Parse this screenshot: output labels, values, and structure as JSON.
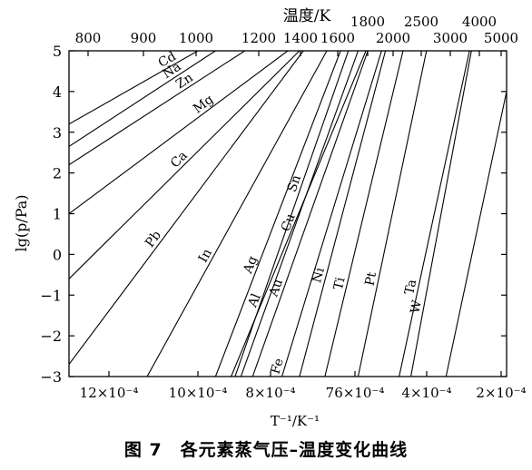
{
  "chart_data": {
    "type": "line",
    "top_axis_title": "温度/K",
    "top_ticks_row1": [
      800,
      900,
      1000,
      1200,
      1400,
      1600,
      2000,
      3000,
      5000
    ],
    "top_ticks_row2": [
      1800,
      2500,
      4000
    ],
    "x_tick_labels": [
      "12×10⁻⁴",
      "10×10⁻⁴",
      "8×10⁻⁴",
      "76×10⁻⁴",
      "4×10⁻⁴",
      "2×10⁻⁴"
    ],
    "xlabel": "T⁻¹/K⁻¹",
    "ylabel": "lg(p/Pa)",
    "y_ticks": [
      5,
      4,
      3,
      2,
      1,
      0,
      -1,
      -2,
      -3
    ],
    "xlim": [
      0.00013,
      0.00125
    ],
    "ylim": [
      -3,
      5
    ],
    "series": [
      {
        "name": "Cd",
        "points": [
          [
            0.00125,
            3.2
          ],
          [
            0.00092,
            5.0
          ]
        ]
      },
      {
        "name": "Na",
        "points": [
          [
            0.00125,
            2.65
          ],
          [
            0.000875,
            5.0
          ]
        ]
      },
      {
        "name": "Zn",
        "points": [
          [
            0.00125,
            2.2
          ],
          [
            0.0008,
            5.0
          ]
        ]
      },
      {
        "name": "Mg",
        "points": [
          [
            0.00125,
            1.0
          ],
          [
            0.00069,
            5.0
          ]
        ]
      },
      {
        "name": "Ca",
        "points": [
          [
            0.00125,
            -0.6
          ],
          [
            0.00066,
            5.0
          ]
        ]
      },
      {
        "name": "Pb",
        "points": [
          [
            0.00125,
            -2.7
          ],
          [
            0.00065,
            5.0
          ]
        ]
      },
      {
        "name": "In",
        "points": [
          [
            0.00105,
            -3.0
          ],
          [
            0.00059,
            5.0
          ]
        ]
      },
      {
        "name": "Ag",
        "points": [
          [
            0.000875,
            -3.0
          ],
          [
            0.000555,
            5.0
          ]
        ]
      },
      {
        "name": "Al",
        "points": [
          [
            0.000835,
            -3.0
          ],
          [
            0.00049,
            5.0
          ]
        ]
      },
      {
        "name": "Sn",
        "points": [
          [
            0.000825,
            -3.0
          ],
          [
            0.000535,
            5.0
          ]
        ]
      },
      {
        "name": "Au",
        "points": [
          [
            0.00078,
            -3.0
          ],
          [
            0.000485,
            5.0
          ]
        ]
      },
      {
        "name": "Cu",
        "points": [
          [
            0.00081,
            -3.0
          ],
          [
            0.00051,
            5.0
          ]
        ]
      },
      {
        "name": "Fe",
        "points": [
          [
            0.000705,
            -3.0
          ],
          [
            0.00045,
            5.0
          ]
        ]
      },
      {
        "name": "Ni",
        "points": [
          [
            0.00066,
            -3.0
          ],
          [
            0.00044,
            5.0
          ]
        ]
      },
      {
        "name": "Ti",
        "points": [
          [
            0.000595,
            -3.0
          ],
          [
            0.000395,
            5.0
          ]
        ]
      },
      {
        "name": "Pt",
        "points": [
          [
            0.00051,
            -3.0
          ],
          [
            0.000335,
            5.0
          ]
        ]
      },
      {
        "name": "Ta",
        "points": [
          [
            0.000405,
            -3.0
          ],
          [
            0.000225,
            5.0
          ]
        ]
      },
      {
        "name": "W",
        "points": [
          [
            0.000375,
            -3.0
          ],
          [
            0.00022,
            5.0
          ]
        ]
      },
      {
        "name": "",
        "points": [
          [
            0.000285,
            -3.0
          ],
          [
            0.00013,
            4.0
          ]
        ]
      }
    ]
  },
  "caption": "图 7　各元素蒸气压–温度变化曲线"
}
